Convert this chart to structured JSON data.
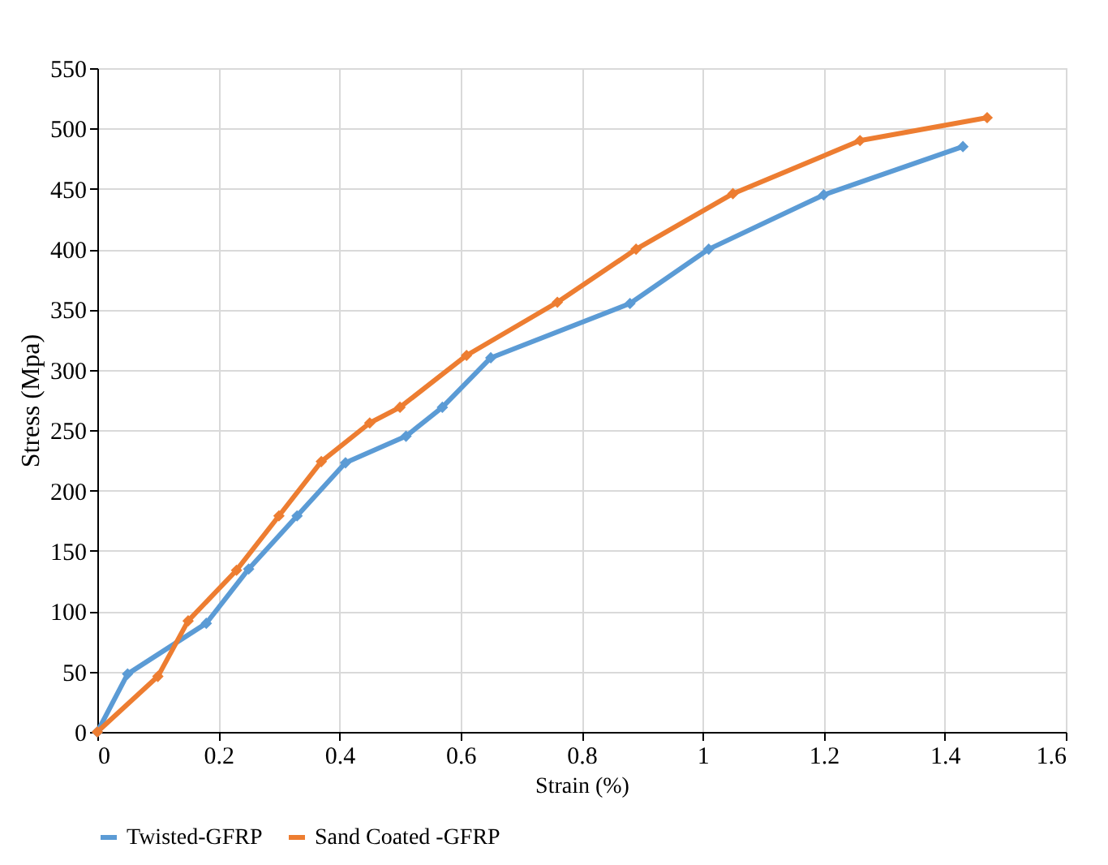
{
  "chart_data": {
    "type": "line",
    "xlabel": "Strain (%)",
    "ylabel": "Stress (Mpa)",
    "xlim": [
      0,
      1.6
    ],
    "xticks": [
      0,
      0.2,
      0.4,
      0.6,
      0.8,
      1,
      1.2,
      1.4,
      1.6
    ],
    "ylim": [
      0,
      550
    ],
    "yticks": [
      0,
      50,
      100,
      150,
      200,
      250,
      300,
      350,
      400,
      450,
      500,
      550
    ],
    "grid": true,
    "legend": "bottom",
    "marker": "diamond",
    "line_style": "solid",
    "series": [
      {
        "name": "Twisted-GFRP",
        "color": "#5b9bd5",
        "x": [
          0,
          0.05,
          0.18,
          0.25,
          0.33,
          0.41,
          0.51,
          0.57,
          0.65,
          0.88,
          1.01,
          1.2,
          1.43
        ],
        "values": [
          0,
          48,
          90,
          135,
          179,
          223,
          245,
          269,
          310,
          355,
          400,
          445,
          485
        ]
      },
      {
        "name": "Sand Coated -GFRP",
        "color": "#ed7d31",
        "x": [
          0,
          0.1,
          0.15,
          0.23,
          0.3,
          0.37,
          0.45,
          0.5,
          0.61,
          0.76,
          0.89,
          1.05,
          1.26,
          1.47
        ],
        "values": [
          0,
          46,
          92,
          134,
          179,
          224,
          256,
          269,
          312,
          356,
          400,
          446,
          490,
          509
        ]
      }
    ]
  }
}
